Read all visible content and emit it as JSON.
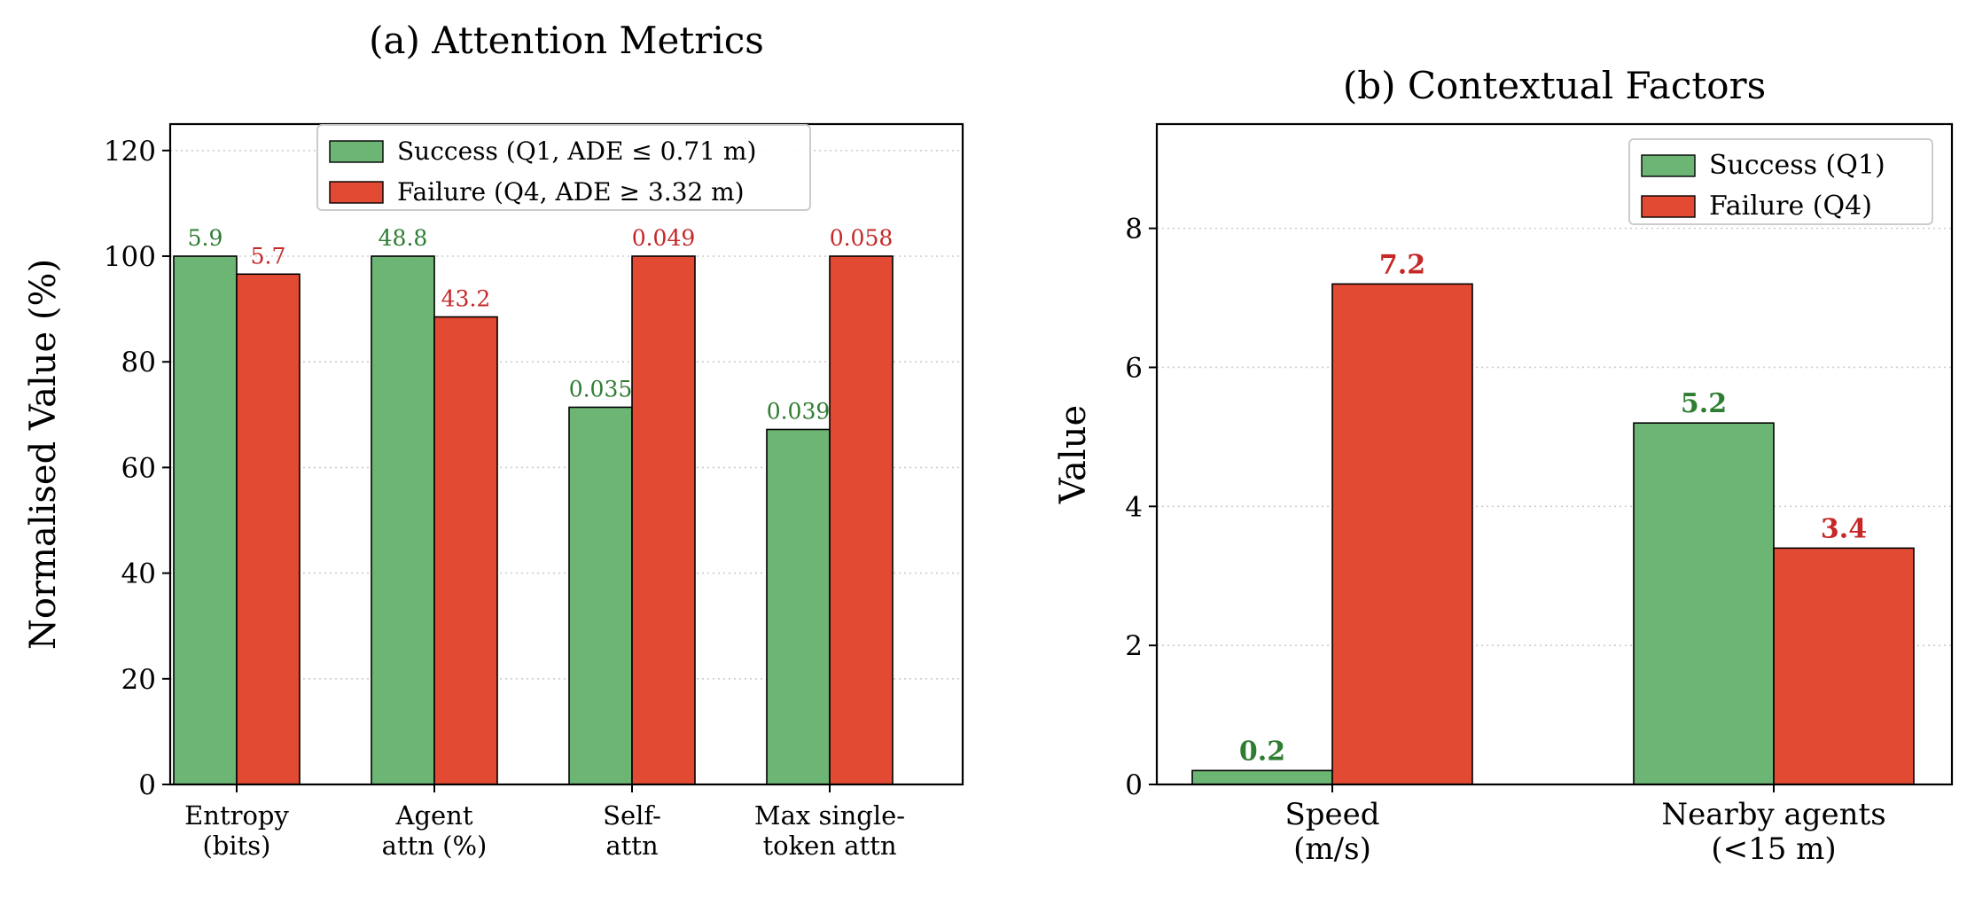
{
  "colors": {
    "success": "#6db575",
    "failure": "#e24a33",
    "success_text": "#2e7d32",
    "failure_text": "#c62828",
    "axis": "#000000",
    "grid": "#cccccc"
  },
  "chart_data": [
    {
      "type": "bar",
      "title": "(a) Attention Metrics",
      "xlabel": "",
      "ylabel": "Normalised Value (%)",
      "ylim": [
        0,
        125
      ],
      "yticks": [
        "0",
        "20",
        "40",
        "60",
        "80",
        "100",
        "120"
      ],
      "ytick_values": [
        0,
        20,
        40,
        60,
        80,
        100,
        120
      ],
      "categories": [
        [
          "Entropy",
          "(bits)"
        ],
        [
          "Agent",
          "attn (%)"
        ],
        [
          "Self-",
          "attn"
        ],
        [
          "Max single-",
          "token attn"
        ]
      ],
      "series": [
        {
          "name": "Success (Q1, ADE ≤ 0.71 m)",
          "key": "success",
          "values": [
            100,
            100,
            71.4,
            67.2
          ],
          "labels": [
            "5.9",
            "48.8",
            "0.035",
            "0.039"
          ]
        },
        {
          "name": "Failure (Q4, ADE ≥ 3.32 m)",
          "key": "failure",
          "values": [
            96.6,
            88.5,
            100,
            100
          ],
          "labels": [
            "5.7",
            "43.2",
            "0.049",
            "0.058"
          ]
        }
      ],
      "grid": "horizontal-dotted",
      "legend": "upper-center"
    },
    {
      "type": "bar",
      "title": "(b) Contextual Factors",
      "xlabel": "",
      "ylabel": "Value",
      "ylim": [
        0,
        9.5
      ],
      "yticks": [
        "0",
        "2",
        "4",
        "6",
        "8"
      ],
      "ytick_values": [
        0,
        2,
        4,
        6,
        8
      ],
      "categories": [
        [
          "Speed",
          "(m/s)"
        ],
        [
          "Nearby agents",
          "(<15 m)"
        ]
      ],
      "series": [
        {
          "name": "Success (Q1)",
          "key": "success",
          "values": [
            0.2,
            5.2
          ],
          "labels": [
            "0.2",
            "5.2"
          ]
        },
        {
          "name": "Failure (Q4)",
          "key": "failure",
          "values": [
            7.2,
            3.4
          ],
          "labels": [
            "7.2",
            "3.4"
          ]
        }
      ],
      "grid": "horizontal-dotted",
      "legend": "top-right"
    }
  ]
}
